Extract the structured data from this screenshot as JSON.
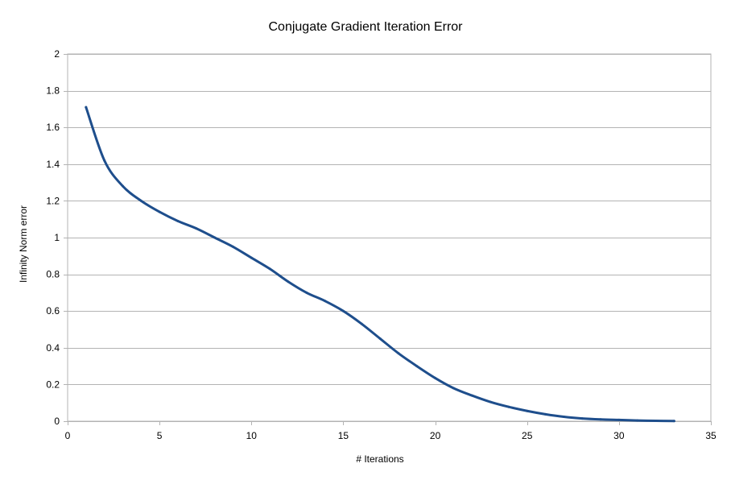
{
  "chart_data": {
    "type": "line",
    "title": "Conjugate Gradient Iteration Error",
    "xlabel": "# Iterations",
    "ylabel": "Infinity Norm error",
    "xlim": [
      0,
      35
    ],
    "ylim": [
      0,
      2
    ],
    "xticks": [
      0,
      5,
      10,
      15,
      20,
      25,
      30,
      35
    ],
    "yticks": [
      0,
      0.2,
      0.4,
      0.6,
      0.8,
      1,
      1.2,
      1.4,
      1.6,
      1.8,
      2
    ],
    "grid": "horizontal",
    "legend": "none",
    "series": [
      {
        "color": "#1e4e8c",
        "x": [
          1,
          2,
          3,
          4,
          5,
          6,
          7,
          8,
          9,
          10,
          11,
          12,
          13,
          14,
          15,
          16,
          17,
          18,
          19,
          20,
          21,
          22,
          23,
          24,
          25,
          26,
          27,
          28,
          29,
          30,
          31,
          32,
          33
        ],
        "y": [
          1.71,
          1.42,
          1.28,
          1.2,
          1.14,
          1.09,
          1.05,
          1.0,
          0.95,
          0.89,
          0.83,
          0.76,
          0.7,
          0.655,
          0.6,
          0.53,
          0.45,
          0.37,
          0.3,
          0.235,
          0.18,
          0.14,
          0.105,
          0.078,
          0.056,
          0.038,
          0.024,
          0.015,
          0.01,
          0.007,
          0.004,
          0.002,
          0.001
        ]
      }
    ]
  }
}
